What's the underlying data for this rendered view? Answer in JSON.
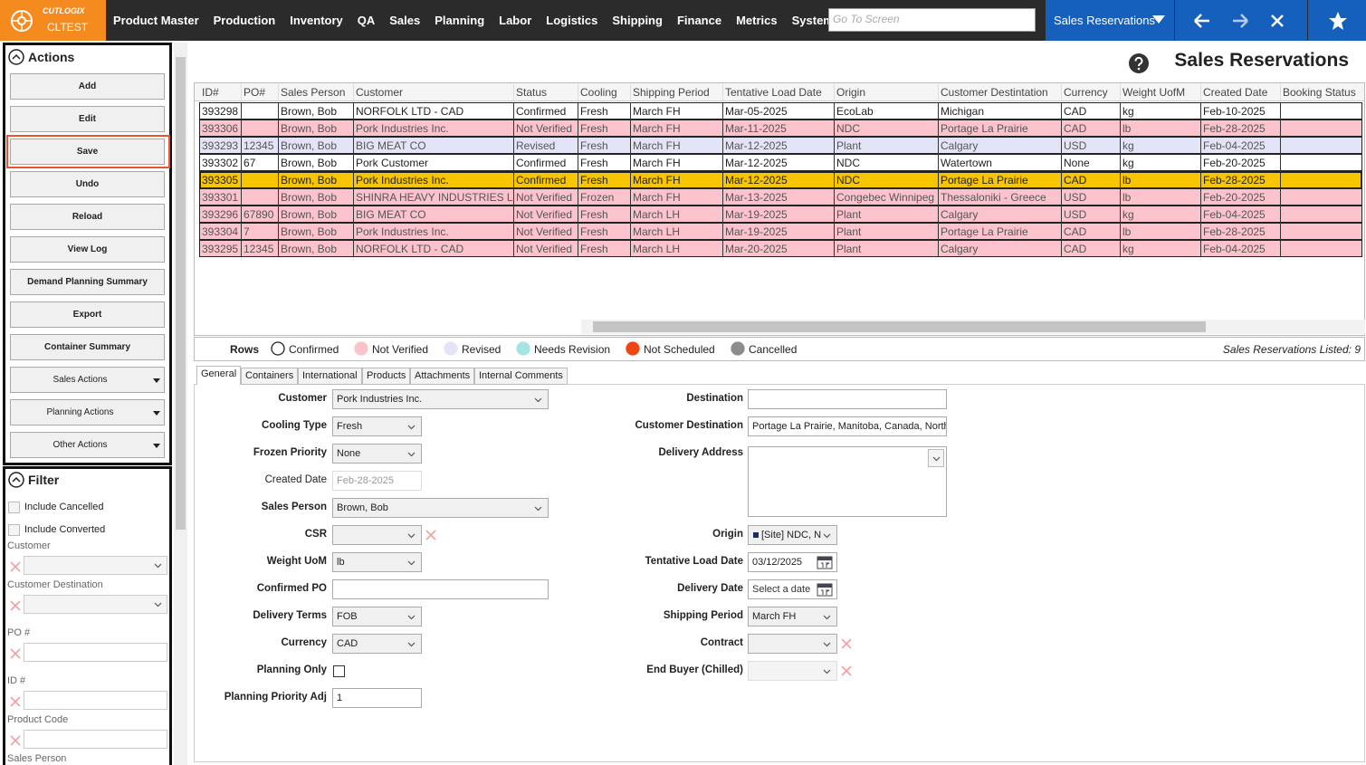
{
  "header": {
    "brand": "CUTLOGIX",
    "environment": "CLTEST",
    "nav": [
      "Product Master",
      "Production",
      "Inventory",
      "QA",
      "Sales",
      "Planning",
      "Labor",
      "Logistics",
      "Shipping",
      "Finance",
      "Metrics",
      "System"
    ],
    "search_placeholder": "Go To Screen",
    "current_screen": "Sales Reservations"
  },
  "actions": {
    "title": "Actions",
    "buttons": [
      "Add",
      "Edit",
      "Save",
      "Undo",
      "Reload",
      "View Log",
      "Demand Planning Summary",
      "Export",
      "Container Summary"
    ],
    "menus": [
      "Sales Actions",
      "Planning Actions",
      "Other Actions"
    ],
    "highlighted_button": 2
  },
  "filter": {
    "title": "Filter",
    "checkboxes": [
      "Include Cancelled",
      "Include Converted"
    ],
    "fields": [
      {
        "label": "Customer",
        "type": "select"
      },
      {
        "label": "Customer Destination",
        "type": "select"
      },
      {
        "label": "PO #",
        "type": "text"
      },
      {
        "label": "ID #",
        "type": "text"
      },
      {
        "label": "Product Code",
        "type": "text"
      },
      {
        "label": "Sales Person",
        "type": "text"
      }
    ]
  },
  "page_title": "Sales Reservations",
  "table": {
    "columns": [
      "ID#",
      "PO#",
      "Sales Person",
      "Customer",
      "Status",
      "Cooling",
      "Shipping Period",
      "Tentative Load Date",
      "Origin",
      "Customer Destintation",
      "Currency",
      "Weight UofM",
      "Created Date",
      "Booking Status"
    ],
    "rows": [
      [
        "393298",
        null,
        "Brown, Bob",
        "NORFOLK LTD - CAD",
        "Confirmed",
        "Fresh",
        "March FH",
        "Mar-05-2025",
        "EcoLab",
        "Michigan",
        "CAD",
        "kg",
        "Feb-10-2025",
        null
      ],
      [
        "393306",
        null,
        "Brown, Bob",
        "Pork Industries Inc.",
        "Not Verified",
        "Fresh",
        "March FH",
        "Mar-11-2025",
        "NDC",
        "Portage La Prairie",
        "CAD",
        "lb",
        "Feb-28-2025",
        null
      ],
      [
        "393293",
        "12345",
        "Brown, Bob",
        "BIG MEAT CO",
        "Revised",
        "Fresh",
        "March FH",
        "Mar-12-2025",
        "Plant",
        "Calgary",
        "USD",
        "kg",
        "Feb-04-2025",
        null
      ],
      [
        "393302",
        "67",
        "Brown, Bob",
        "Pork Customer",
        "Confirmed",
        "Fresh",
        "March FH",
        "Mar-12-2025",
        "NDC",
        "Watertown",
        "None",
        "kg",
        "Feb-20-2025",
        null
      ],
      [
        "393305",
        null,
        "Brown, Bob",
        "Pork Industries Inc.",
        "Confirmed",
        "Fresh",
        "March FH",
        "Mar-12-2025",
        "NDC",
        "Portage La Prairie",
        "CAD",
        "lb",
        "Feb-28-2025",
        null
      ],
      [
        "393301",
        null,
        "Brown, Bob",
        "SHINRA HEAVY INDUSTRIES LLC",
        "Not Verified",
        "Frozen",
        "March FH",
        "Mar-13-2025",
        "Congebec Winnipeg",
        "Thessaloniki - Greece",
        "USD",
        "lb",
        "Feb-20-2025",
        null
      ],
      [
        "393296",
        "67890",
        "Brown, Bob",
        "BIG MEAT CO",
        "Not Verified",
        "Fresh",
        "March LH",
        "Mar-19-2025",
        "Plant",
        "Calgary",
        "USD",
        "kg",
        "Feb-04-2025",
        null
      ],
      [
        "393304",
        "7",
        "Brown, Bob",
        "Pork Industries Inc.",
        "Not Verified",
        "Fresh",
        "March LH",
        "Mar-19-2025",
        "Plant",
        "Portage La Prairie",
        "CAD",
        "lb",
        "Feb-28-2025",
        null
      ],
      [
        "393295",
        "12345",
        "Brown, Bob",
        "NORFOLK LTD - CAD",
        "Not Verified",
        "Fresh",
        "March LH",
        "Mar-20-2025",
        "Plant",
        "Calgary",
        "CAD",
        "kg",
        "Feb-04-2025",
        null
      ]
    ],
    "selected_row": 4,
    "selected_color": "#f7c600"
  },
  "legend": {
    "title": "Rows",
    "items": [
      {
        "name": "Confirmed",
        "color": "#ffffff"
      },
      {
        "name": "Not Verified",
        "color": "#fcc3cd"
      },
      {
        "name": "Revised",
        "color": "#e4e4f8"
      },
      {
        "name": "Needs Revision",
        "color": "#a6e3e3"
      },
      {
        "name": "Not Scheduled",
        "color": "#ef4512"
      },
      {
        "name": "Cancelled",
        "color": "#8c8c8c"
      }
    ],
    "summary": "Sales Reservations Listed: 9"
  },
  "tabs": {
    "items": [
      "General",
      "Containers",
      "International",
      "Products",
      "Attachments",
      "Internal Comments"
    ],
    "active": 0
  },
  "form": {
    "left": [
      {
        "label": "Customer",
        "value": "Pork Industries Inc.",
        "type": "select-wide"
      },
      {
        "label": "Cooling Type",
        "value": "Fresh",
        "type": "select"
      },
      {
        "label": "Frozen Priority",
        "value": "None",
        "type": "select"
      },
      {
        "label": "Created Date",
        "value": "Feb-28-2025",
        "type": "readonly"
      },
      {
        "label": "Sales Person",
        "value": "Brown, Bob",
        "type": "select-wide"
      },
      {
        "label": "CSR",
        "value": null,
        "type": "select",
        "clearable": true
      },
      {
        "label": "Weight UoM",
        "value": "lb",
        "type": "select"
      },
      {
        "label": "Confirmed PO",
        "value": null,
        "type": "text-wide"
      },
      {
        "label": "Delivery Terms",
        "value": "FOB",
        "type": "select"
      },
      {
        "label": "Currency",
        "value": "CAD",
        "type": "select"
      },
      {
        "label": "Planning Only",
        "value": false,
        "type": "checkbox"
      },
      {
        "label": "Planning Priority Adj",
        "value": "1",
        "type": "text"
      }
    ],
    "right": [
      {
        "label": "Destination",
        "value": null,
        "type": "text-wide"
      },
      {
        "label": "Customer Destination",
        "value": "Portage La Prairie, Manitoba, Canada, North",
        "type": "text-wide"
      },
      {
        "label": "Delivery Address",
        "value": null,
        "type": "textarea"
      },
      {
        "label": "Origin",
        "value": "[Site] NDC, N",
        "type": "select"
      },
      {
        "label": "Tentative Load Date",
        "value": "03/12/2025",
        "type": "date"
      },
      {
        "label": "Delivery Date",
        "placeholder": "Select a date",
        "type": "date"
      },
      {
        "label": "Shipping Period",
        "value": "March FH",
        "type": "select"
      },
      {
        "label": "Contract",
        "value": null,
        "type": "select",
        "clearable": true
      },
      {
        "label": "End Buyer (Chilled)",
        "value": null,
        "type": "select-disabled",
        "clearable": true
      }
    ]
  }
}
